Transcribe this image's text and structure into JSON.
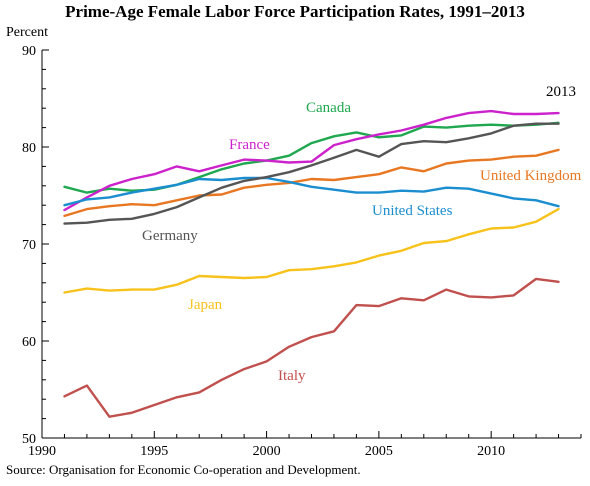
{
  "chart_data": {
    "type": "line",
    "title": "Prime-Age Female Labor Force Participation Rates, 1991–2013",
    "ylabel": "Percent",
    "xlabel": "",
    "xlim": [
      1990,
      2014
    ],
    "ylim": [
      50,
      90
    ],
    "x_ticks": [
      1990,
      1995,
      2000,
      2005,
      2010
    ],
    "y_ticks": [
      50,
      60,
      70,
      80,
      90
    ],
    "grid": false,
    "end_label": "2013",
    "source": "Source: Organisation for Economic Co-operation and Development.",
    "x": [
      1991,
      1992,
      1993,
      1994,
      1995,
      1996,
      1997,
      1998,
      1999,
      2000,
      2001,
      2002,
      2003,
      2004,
      2005,
      2006,
      2007,
      2008,
      2009,
      2010,
      2011,
      2012,
      2013
    ],
    "series": [
      {
        "name": "Canada",
        "color": "#1fa84f",
        "values": [
          75.9,
          75.3,
          75.7,
          75.5,
          75.6,
          76.1,
          76.9,
          77.7,
          78.3,
          78.6,
          79.1,
          80.4,
          81.1,
          81.5,
          81.0,
          81.2,
          82.1,
          82.0,
          82.2,
          82.3,
          82.2,
          82.3,
          82.5
        ]
      },
      {
        "name": "France",
        "color": "#cc22cc",
        "values": [
          73.5,
          74.8,
          76.0,
          76.7,
          77.2,
          78.0,
          77.5,
          78.1,
          78.7,
          78.6,
          78.4,
          78.5,
          80.2,
          80.8,
          81.3,
          81.7,
          82.3,
          83.0,
          83.5,
          83.7,
          83.4,
          83.4,
          83.5
        ]
      },
      {
        "name": "United Kingdom",
        "color": "#e87722",
        "values": [
          72.9,
          73.6,
          73.9,
          74.1,
          74.0,
          74.5,
          75.0,
          75.1,
          75.8,
          76.1,
          76.3,
          76.7,
          76.6,
          76.9,
          77.2,
          77.9,
          77.5,
          78.3,
          78.6,
          78.7,
          79.0,
          79.1,
          79.7
        ]
      },
      {
        "name": "United States",
        "color": "#1b8ed0",
        "values": [
          74.0,
          74.6,
          74.8,
          75.3,
          75.7,
          76.1,
          76.7,
          76.6,
          76.8,
          76.8,
          76.4,
          75.9,
          75.6,
          75.3,
          75.3,
          75.5,
          75.4,
          75.8,
          75.7,
          75.2,
          74.7,
          74.5,
          73.9
        ]
      },
      {
        "name": "Germany",
        "color": "#555555",
        "values": [
          72.1,
          72.2,
          72.5,
          72.6,
          73.1,
          73.8,
          74.8,
          75.8,
          76.5,
          76.9,
          77.4,
          78.1,
          78.9,
          79.7,
          79.0,
          80.3,
          80.6,
          80.5,
          80.9,
          81.4,
          82.2,
          82.4,
          82.4
        ]
      },
      {
        "name": "Japan",
        "color": "#f7c21b",
        "values": [
          65.0,
          65.4,
          65.2,
          65.3,
          65.3,
          65.8,
          66.7,
          66.6,
          66.5,
          66.6,
          67.3,
          67.4,
          67.7,
          68.1,
          68.8,
          69.3,
          70.1,
          70.3,
          71.0,
          71.6,
          71.7,
          72.3,
          73.6
        ]
      },
      {
        "name": "Italy",
        "color": "#c0504d",
        "values": [
          54.3,
          55.4,
          52.2,
          52.6,
          53.4,
          54.2,
          54.7,
          56.0,
          57.1,
          57.9,
          59.4,
          60.4,
          61.0,
          63.7,
          63.6,
          64.4,
          64.2,
          65.3,
          64.6,
          64.5,
          64.7,
          66.4,
          66.1
        ]
      }
    ]
  }
}
